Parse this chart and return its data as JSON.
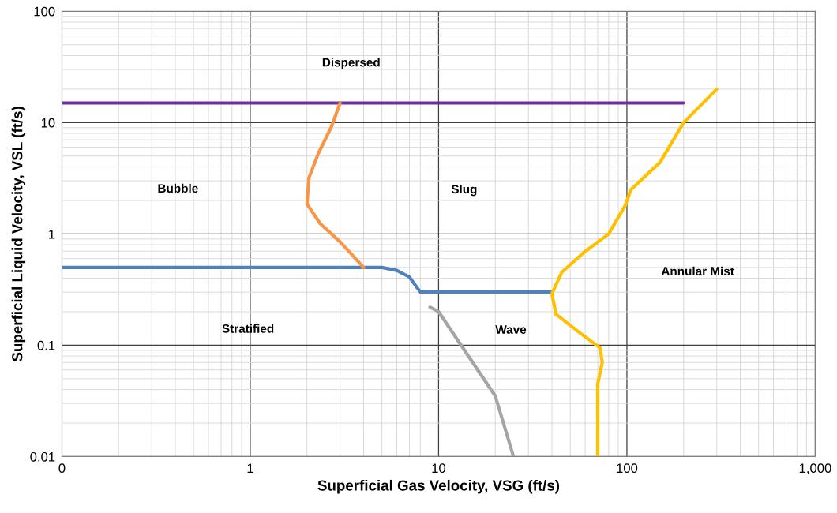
{
  "chart_data": {
    "type": "line",
    "xlabel": "Superficial Gas Velocity, VSG (ft/s)",
    "ylabel": "Superficial Liquid Velocity, VSL (ft/s)",
    "log": "xy",
    "grid": true,
    "legend": false,
    "marker": "none",
    "line_style": "solid",
    "xlim": [
      0.1,
      1000
    ],
    "xticks": [
      {
        "value": 0.1,
        "label": "0"
      },
      1,
      10,
      100,
      {
        "value": 1000,
        "label": "1,000"
      }
    ],
    "ylim": [
      0.01,
      100
    ],
    "yticks": [
      0.01,
      0.1,
      1,
      10,
      100
    ],
    "series": [
      {
        "color": "#7030a0",
        "x": [
          0.1,
          200
        ],
        "values": [
          15,
          15
        ]
      },
      {
        "color": "#4f81bd",
        "x": [
          0.1,
          5,
          6,
          7,
          8,
          40
        ],
        "values": [
          0.5,
          0.5,
          0.47,
          0.41,
          0.3,
          0.3
        ]
      },
      {
        "color": "#a5a5a5",
        "x": [
          9,
          10,
          20,
          25
        ],
        "values": [
          0.22,
          0.2,
          0.035,
          0.01
        ]
      },
      {
        "color": "#f79646",
        "x": [
          4,
          3,
          2.35,
          2.0,
          2.05,
          2.3,
          2.7,
          3.0
        ],
        "values": [
          0.5,
          0.85,
          1.24,
          1.86,
          3.2,
          5.3,
          9.2,
          15
        ]
      },
      {
        "color": "#ffc000",
        "x": [
          300,
          200,
          150,
          105,
          98,
          80,
          59,
          45,
          40,
          42,
          56,
          72,
          74,
          70,
          70
        ],
        "values": [
          20,
          10,
          4.4,
          2.5,
          1.8,
          1,
          0.68,
          0.45,
          0.29,
          0.19,
          0.13,
          0.095,
          0.07,
          0.045,
          0.01
        ]
      }
    ],
    "annotations": [
      "Dispersed",
      "Bubble",
      "Slug",
      "Stratified",
      "Wave",
      "Annular Mist"
    ]
  }
}
